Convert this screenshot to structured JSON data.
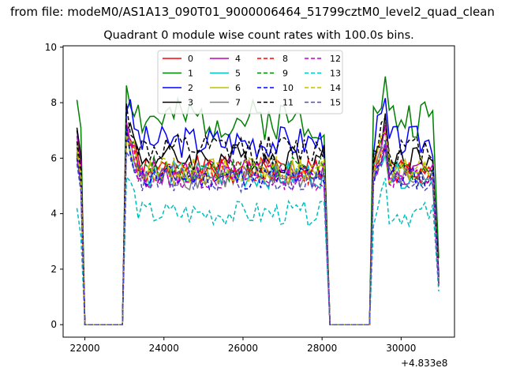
{
  "figure": {
    "suptitle": "from file: modeM0/AS1A13_090T01_9000006464_51799cztM0_level2_quad_clean",
    "x_offset_label": "+4.833e8"
  },
  "chart_data": {
    "type": "line",
    "title": "Quadrant 0 module wise count rates with 100.0s bins.",
    "xlabel": "",
    "ylabel": "",
    "xlim": [
      21450,
      31350
    ],
    "ylim": [
      -0.45,
      10.05
    ],
    "x_ticks": [
      22000,
      24000,
      26000,
      28000,
      30000
    ],
    "x_tick_labels": [
      "22000",
      "24000",
      "26000",
      "28000",
      "30000"
    ],
    "y_ticks": [
      0,
      2,
      4,
      6,
      8,
      10
    ],
    "y_tick_labels": [
      "0",
      "2",
      "4",
      "6",
      "8",
      "10"
    ],
    "grid": false,
    "legend_placement": "top-center",
    "legend_columns": 4,
    "series": [
      {
        "name": "0",
        "color": "#ff0000",
        "dash": "solid",
        "start": 6.3,
        "level": 5.6,
        "amp": 0.45,
        "end": 1.5,
        "seed": 1
      },
      {
        "name": "1",
        "color": "#008000",
        "dash": "solid",
        "start": 8.1,
        "level": 7.4,
        "amp": 0.75,
        "end": 2.4,
        "seed": 2
      },
      {
        "name": "2",
        "color": "#0000ff",
        "dash": "solid",
        "start": 7.0,
        "level": 6.6,
        "amp": 0.6,
        "end": 1.8,
        "seed": 3
      },
      {
        "name": "3",
        "color": "#000000",
        "dash": "solid",
        "start": 7.1,
        "level": 6.0,
        "amp": 0.55,
        "end": 1.6,
        "seed": 4
      },
      {
        "name": "4",
        "color": "#bf00bf",
        "dash": "solid",
        "start": 6.8,
        "level": 5.5,
        "amp": 0.55,
        "end": 1.6,
        "seed": 5
      },
      {
        "name": "5",
        "color": "#00bfbf",
        "dash": "solid",
        "start": 6.0,
        "level": 5.4,
        "amp": 0.5,
        "end": 1.5,
        "seed": 6
      },
      {
        "name": "6",
        "color": "#bfbf00",
        "dash": "solid",
        "start": 6.5,
        "level": 5.5,
        "amp": 0.5,
        "end": 1.5,
        "seed": 7
      },
      {
        "name": "7",
        "color": "#808080",
        "dash": "solid",
        "start": 6.2,
        "level": 5.3,
        "amp": 0.45,
        "end": 1.4,
        "seed": 8
      },
      {
        "name": "8",
        "color": "#ff0000",
        "dash": "dashed",
        "start": 6.2,
        "level": 5.5,
        "amp": 0.45,
        "end": 1.5,
        "seed": 9
      },
      {
        "name": "9",
        "color": "#008000",
        "dash": "dashed",
        "start": 6.4,
        "level": 5.6,
        "amp": 0.45,
        "end": 1.5,
        "seed": 10
      },
      {
        "name": "10",
        "color": "#0000ff",
        "dash": "dashed",
        "start": 6.0,
        "level": 5.3,
        "amp": 0.45,
        "end": 1.4,
        "seed": 11
      },
      {
        "name": "11",
        "color": "#000000",
        "dash": "dashed",
        "start": 6.6,
        "level": 6.3,
        "amp": 0.55,
        "end": 1.7,
        "seed": 12
      },
      {
        "name": "12",
        "color": "#bf00bf",
        "dash": "dashed",
        "start": 6.1,
        "level": 5.3,
        "amp": 0.45,
        "end": 1.4,
        "seed": 13
      },
      {
        "name": "13",
        "color": "#00bfbf",
        "dash": "dashed",
        "start": 4.2,
        "level": 4.0,
        "amp": 0.45,
        "end": 1.2,
        "seed": 14
      },
      {
        "name": "14",
        "color": "#bfbf00",
        "dash": "dashed",
        "start": 6.3,
        "level": 5.6,
        "amp": 0.45,
        "end": 1.5,
        "seed": 15
      },
      {
        "name": "15",
        "color": "#4d4dc0",
        "dash": "dashed",
        "start": 5.8,
        "level": 5.2,
        "amp": 0.45,
        "end": 1.4,
        "seed": 16
      }
    ],
    "segments": {
      "x_start": 21800,
      "x_drop": 22000,
      "x_gap1_end": 22950,
      "x_active1_start": 23050,
      "x_active1_end": 28100,
      "x_gap2_start": 28200,
      "x_gap2_end": 29200,
      "x_active2_start": 29300,
      "x_end": 30950
    }
  }
}
